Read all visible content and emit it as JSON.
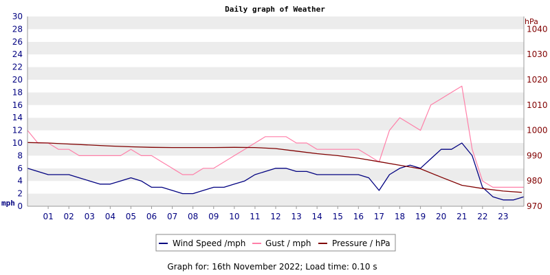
{
  "chart_data": {
    "type": "line",
    "title": "Daily graph of Weather",
    "left_axis": {
      "unit": "mph",
      "ylim": [
        0,
        30
      ],
      "ticks": [
        0,
        2,
        4,
        6,
        8,
        10,
        12,
        14,
        16,
        18,
        20,
        22,
        24,
        26,
        28,
        30
      ]
    },
    "right_axis": {
      "unit": "hPa",
      "ylim": [
        970,
        1045
      ],
      "ticks": [
        970,
        980,
        990,
        1000,
        1010,
        1020,
        1030,
        1040
      ]
    },
    "x_axis": {
      "xlim": [
        0,
        24
      ],
      "tick_labels": [
        "01",
        "02",
        "03",
        "04",
        "05",
        "06",
        "07",
        "08",
        "09",
        "10",
        "11",
        "12",
        "13",
        "14",
        "15",
        "16",
        "17",
        "18",
        "19",
        "20",
        "21",
        "22",
        "23"
      ]
    },
    "grid": "horizontal-bands",
    "legend_position": "bottom",
    "series": [
      {
        "name": "Wind Speed /mph",
        "axis": "left",
        "color": "#000080",
        "x": [
          0,
          0.5,
          1,
          1.5,
          2,
          2.5,
          3,
          3.5,
          4,
          4.5,
          5,
          5.5,
          6,
          6.5,
          7,
          7.5,
          8,
          8.5,
          9,
          9.5,
          10,
          10.5,
          11,
          11.5,
          12,
          12.5,
          13,
          13.5,
          14,
          14.5,
          15,
          15.5,
          16,
          16.5,
          17,
          17.5,
          18,
          18.5,
          19,
          19.5,
          20,
          20.5,
          21,
          21.5,
          22,
          22.5,
          23,
          23.5,
          24
        ],
        "values": [
          6,
          5.5,
          5,
          5,
          5,
          4.5,
          4,
          3.5,
          3.5,
          4,
          4.5,
          4,
          3,
          3,
          2.5,
          2,
          2,
          2.5,
          3,
          3,
          3.5,
          4,
          5,
          5.5,
          6,
          6,
          5.5,
          5.5,
          5,
          5,
          5,
          5,
          5,
          4.5,
          2.5,
          5,
          6,
          6.5,
          6,
          7.5,
          9,
          9,
          10,
          8,
          3,
          1.5,
          1,
          1,
          1.5
        ]
      },
      {
        "name": "Gust / mph",
        "axis": "left",
        "color": "#ff7fa8",
        "x": [
          0,
          0.5,
          1,
          1.5,
          2,
          2.5,
          3,
          3.5,
          4,
          4.5,
          5,
          5.5,
          6,
          6.5,
          7,
          7.5,
          8,
          8.5,
          9,
          9.5,
          10,
          10.5,
          11,
          11.5,
          12,
          12.5,
          13,
          13.5,
          14,
          14.5,
          15,
          15.5,
          16,
          16.5,
          17,
          17.5,
          18,
          18.5,
          19,
          19.5,
          20,
          20.5,
          21,
          21.5,
          22,
          22.5,
          23,
          23.5,
          24
        ],
        "values": [
          12,
          10,
          10,
          9,
          9,
          8,
          8,
          8,
          8,
          8,
          9,
          8,
          8,
          7,
          6,
          5,
          5,
          6,
          6,
          7,
          8,
          9,
          10,
          11,
          11,
          11,
          10,
          10,
          9,
          9,
          9,
          9,
          9,
          8,
          7,
          12,
          14,
          13,
          12,
          16,
          17,
          18,
          19,
          9,
          4,
          3,
          3,
          3,
          3
        ]
      },
      {
        "name": "Pressure / hPa",
        "axis": "right",
        "color": "#800000",
        "x": [
          0,
          1,
          2,
          3,
          4,
          5,
          6,
          7,
          8,
          9,
          10,
          11,
          12,
          13,
          14,
          15,
          16,
          17,
          18,
          19,
          20,
          21,
          22,
          23,
          23.9
        ],
        "values": [
          995.2,
          995,
          994.6,
          994.2,
          993.8,
          993.5,
          993.3,
          993.2,
          993.2,
          993.2,
          993.3,
          993.2,
          992.8,
          991.8,
          990.8,
          990,
          989,
          987.6,
          986.2,
          984.8,
          981.5,
          978.3,
          977,
          976,
          975.5
        ]
      }
    ]
  },
  "footer": "Graph for: 16th November 2022; Load time: 0.10 s"
}
